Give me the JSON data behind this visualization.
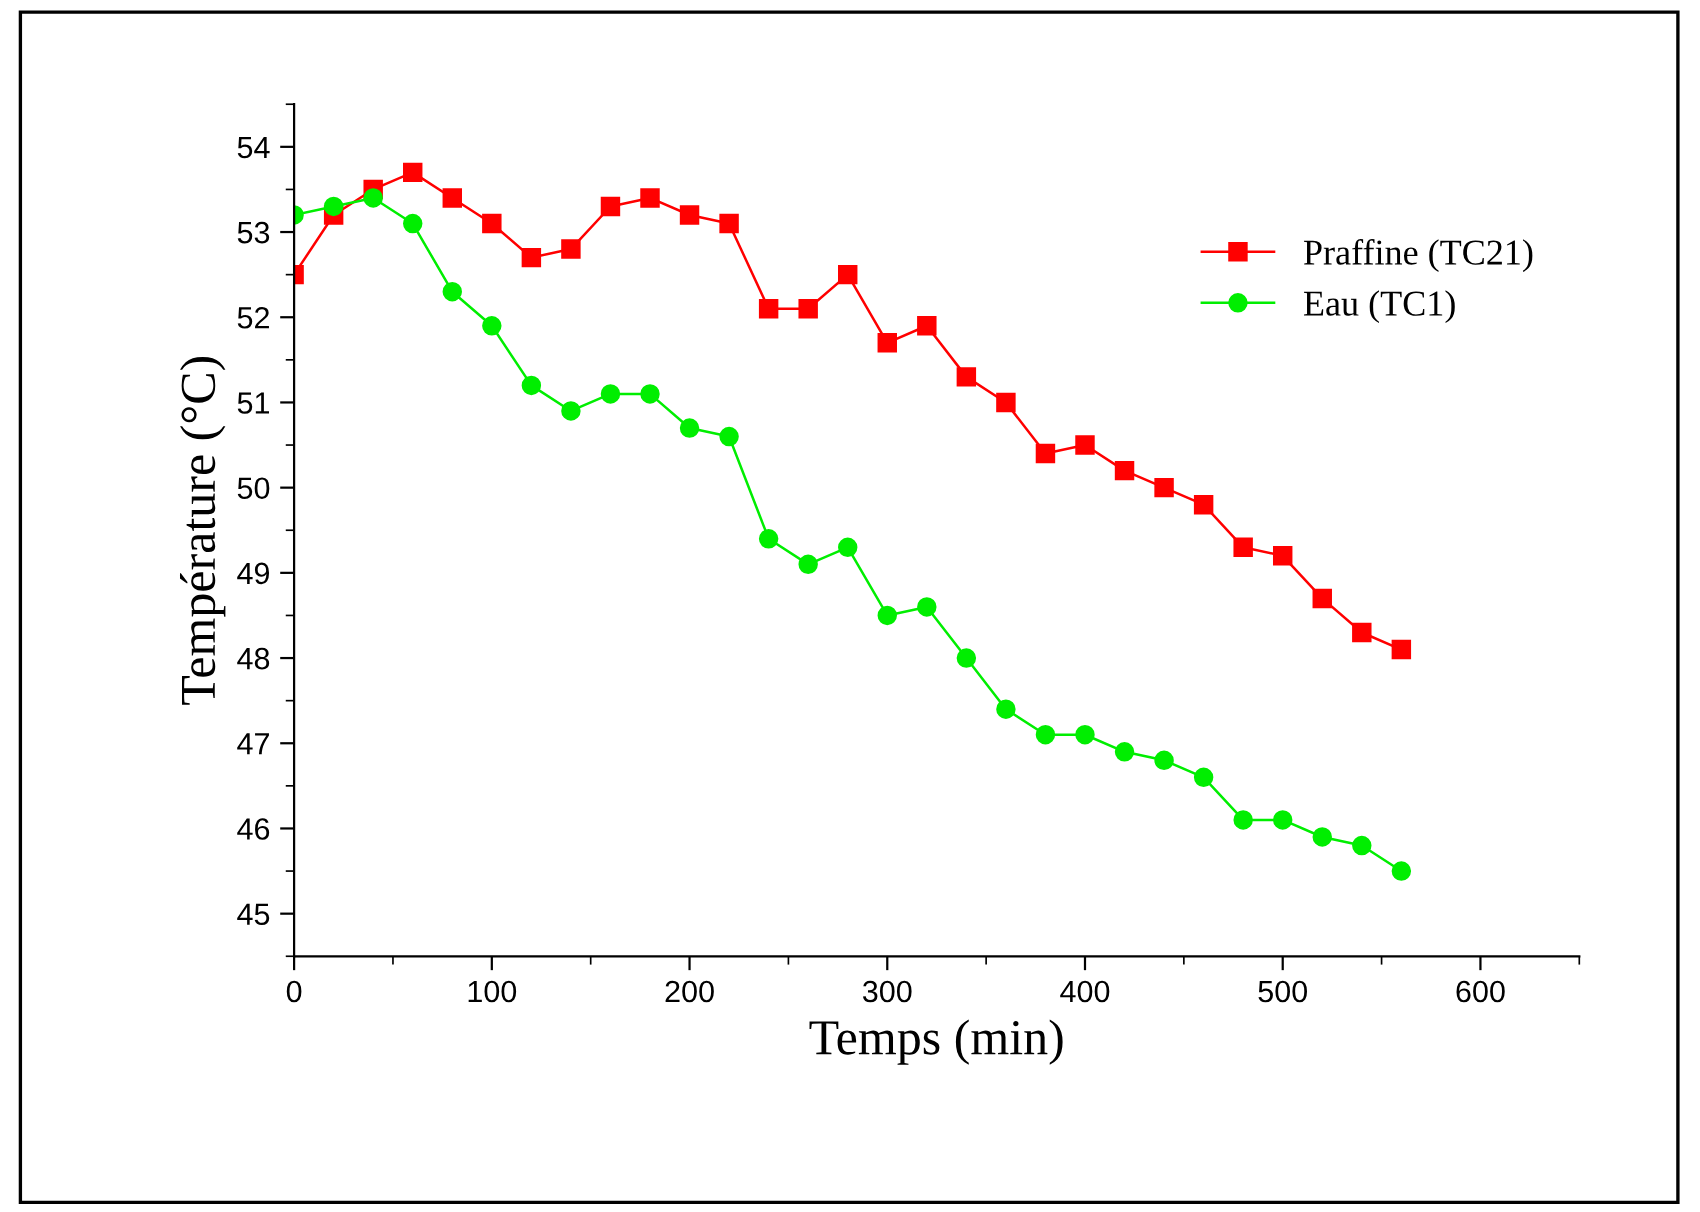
{
  "chart_data": {
    "type": "line",
    "xlabel": "Temps (min)",
    "ylabel": "Température (°C)",
    "x": [
      0,
      20,
      40,
      60,
      80,
      100,
      120,
      140,
      160,
      180,
      200,
      220,
      240,
      260,
      280,
      300,
      320,
      340,
      360,
      380,
      400,
      420,
      440,
      460,
      480,
      500,
      520,
      540,
      560
    ],
    "series": [
      {
        "name": "Praffine (TC21)",
        "color": "#ff0000",
        "marker": "square",
        "values": [
          52.5,
          53.2,
          53.5,
          53.7,
          53.4,
          53.1,
          52.7,
          52.8,
          53.3,
          53.4,
          53.2,
          53.1,
          52.1,
          52.1,
          52.5,
          51.7,
          51.9,
          51.3,
          51.0,
          50.4,
          50.5,
          50.2,
          50.0,
          49.8,
          49.3,
          49.2,
          48.7,
          48.3,
          48.1
        ]
      },
      {
        "name": "Eau (TC1)",
        "color": "#00ee00",
        "marker": "circle",
        "values": [
          53.2,
          53.3,
          53.4,
          53.1,
          52.3,
          51.9,
          51.2,
          50.9,
          51.1,
          51.1,
          50.7,
          50.6,
          49.4,
          49.1,
          49.3,
          48.5,
          48.6,
          48.0,
          47.4,
          47.1,
          47.1,
          46.9,
          46.8,
          46.6,
          46.1,
          46.1,
          45.9,
          45.8,
          45.5
        ]
      }
    ],
    "xlim": [
      0,
      650
    ],
    "xticks": [
      0,
      100,
      200,
      300,
      400,
      500,
      600
    ],
    "ylim": [
      44.5,
      54.5
    ],
    "yticks": [
      45,
      46,
      47,
      48,
      49,
      50,
      51,
      52,
      53,
      54
    ],
    "grid": false,
    "legend": "top right",
    "line_style": "solid"
  }
}
